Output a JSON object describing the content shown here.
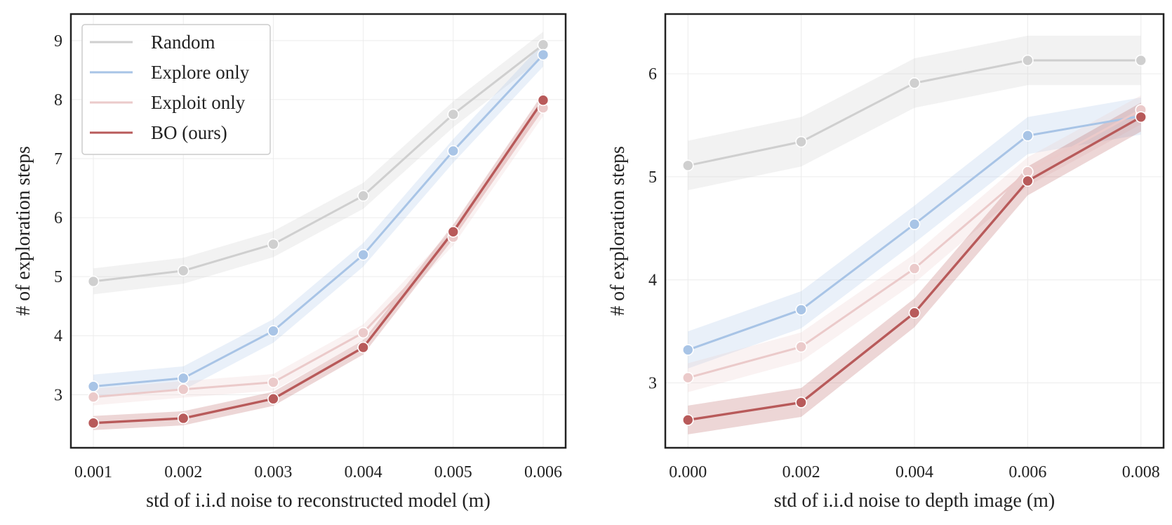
{
  "chart_data": [
    {
      "type": "line",
      "title": "",
      "xlabel": "std of i.i.d noise to reconstructed model (m)",
      "ylabel": "# of exploration steps",
      "x": [
        0.001,
        0.002,
        0.003,
        0.004,
        0.005,
        0.006
      ],
      "x_tick_labels": [
        "0.001",
        "0.002",
        "0.003",
        "0.004",
        "0.005",
        "0.006"
      ],
      "xlim": [
        0.00075,
        0.00625
      ],
      "ylim": [
        2.1,
        9.45
      ],
      "y_ticks": [
        3,
        4,
        5,
        6,
        7,
        8,
        9
      ],
      "y_tick_labels": [
        "3",
        "4",
        "5",
        "6",
        "7",
        "8",
        "9"
      ],
      "grid": true,
      "legend": "top-left",
      "series": [
        {
          "name": "Random",
          "color": "#cfcfcf",
          "values": [
            4.92,
            5.1,
            5.55,
            6.37,
            7.75,
            8.93
          ],
          "band": 0.22
        },
        {
          "name": "Explore only",
          "color": "#a8c4e6",
          "values": [
            3.14,
            3.28,
            4.08,
            5.37,
            7.13,
            8.76
          ],
          "band": 0.2
        },
        {
          "name": "Exploit only",
          "color": "#ebcaca",
          "values": [
            2.96,
            3.09,
            3.21,
            4.05,
            5.67,
            7.86
          ],
          "band": 0.14
        },
        {
          "name": "BO (ours)",
          "color": "#b85a5a",
          "values": [
            2.52,
            2.6,
            2.93,
            3.8,
            5.76,
            7.99
          ],
          "band": 0.12
        }
      ]
    },
    {
      "type": "line",
      "title": "",
      "xlabel": "std of i.i.d noise to depth image (m)",
      "ylabel": "# of exploration steps",
      "x": [
        0.0,
        0.002,
        0.004,
        0.006,
        0.008
      ],
      "x_tick_labels": [
        "0.000",
        "0.002",
        "0.004",
        "0.006",
        "0.008"
      ],
      "xlim": [
        -0.0004,
        0.0084
      ],
      "ylim": [
        2.37,
        6.58
      ],
      "y_ticks": [
        3,
        4,
        5,
        6
      ],
      "y_tick_labels": [
        "3",
        "4",
        "5",
        "6"
      ],
      "grid": true,
      "legend": "none",
      "series": [
        {
          "name": "Random",
          "color": "#cfcfcf",
          "values": [
            5.11,
            5.34,
            5.91,
            6.13,
            6.13
          ],
          "band": 0.24
        },
        {
          "name": "Explore only",
          "color": "#a8c4e6",
          "values": [
            3.32,
            3.71,
            4.54,
            5.4,
            5.59
          ],
          "band": 0.18
        },
        {
          "name": "Exploit only",
          "color": "#ebcaca",
          "values": [
            3.05,
            3.35,
            4.11,
            5.05,
            5.65
          ],
          "band": 0.14
        },
        {
          "name": "BO (ours)",
          "color": "#b85a5a",
          "values": [
            2.64,
            2.81,
            3.68,
            4.96,
            5.58
          ],
          "band": 0.14
        }
      ]
    }
  ]
}
